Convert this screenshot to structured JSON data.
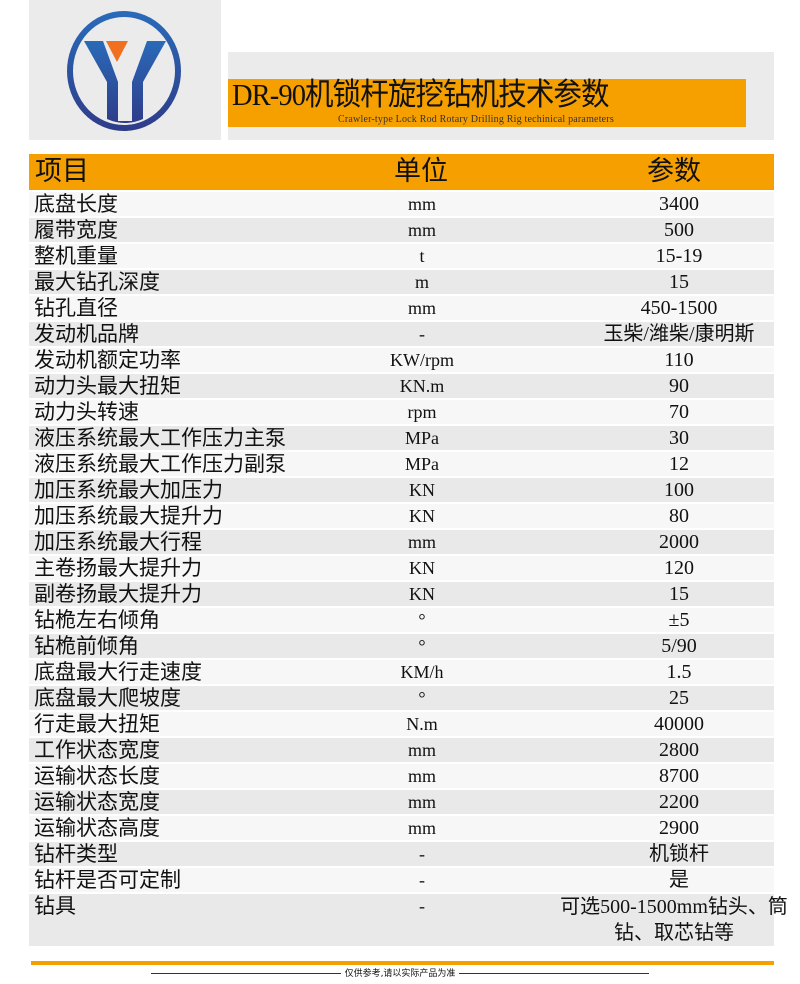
{
  "title": "DR-90机锁杆旋挖钻机技术参数",
  "subtitle": "Crawler-type Lock Rod Rotary Drilling Rig techinical parameters",
  "colors": {
    "accent": "#f5a000",
    "logo_blue": "#2a5aa8",
    "logo_orange": "#f07020"
  },
  "header": {
    "item": "项目",
    "unit": "单位",
    "value": "参数"
  },
  "rows": [
    {
      "item": "底盘长度",
      "unit": "mm",
      "value": "3400"
    },
    {
      "item": "履带宽度",
      "unit": "mm",
      "value": "500"
    },
    {
      "item": "整机重量",
      "unit": "t",
      "value": "15-19"
    },
    {
      "item": "最大钻孔深度",
      "unit": "m",
      "value": "15"
    },
    {
      "item": "钻孔直径",
      "unit": "mm",
      "value": "450-1500"
    },
    {
      "item": "发动机品牌",
      "unit": "-",
      "value": "玉柴/潍柴/康明斯"
    },
    {
      "item": "发动机额定功率",
      "unit": "KW/rpm",
      "value": "110"
    },
    {
      "item": "动力头最大扭矩",
      "unit": "KN.m",
      "value": "90"
    },
    {
      "item": "动力头转速",
      "unit": "rpm",
      "value": "70"
    },
    {
      "item": "液压系统最大工作压力主泵",
      "unit": "MPa",
      "value": "30"
    },
    {
      "item": "液压系统最大工作压力副泵",
      "unit": "MPa",
      "value": "12"
    },
    {
      "item": "加压系统最大加压力",
      "unit": "KN",
      "value": "100"
    },
    {
      "item": "加压系统最大提升力",
      "unit": "KN",
      "value": "80"
    },
    {
      "item": "加压系统最大行程",
      "unit": "mm",
      "value": "2000"
    },
    {
      "item": "主卷扬最大提升力",
      "unit": "KN",
      "value": "120"
    },
    {
      "item": "副卷扬最大提升力",
      "unit": "KN",
      "value": "15"
    },
    {
      "item": "钻桅左右倾角",
      "unit": "°",
      "value": "±5"
    },
    {
      "item": "钻桅前倾角",
      "unit": "°",
      "value": "5/90"
    },
    {
      "item": "底盘最大行走速度",
      "unit": "KM/h",
      "value": "1.5"
    },
    {
      "item": "底盘最大爬坡度",
      "unit": "°",
      "value": "25"
    },
    {
      "item": "行走最大扭矩",
      "unit": "N.m",
      "value": "40000"
    },
    {
      "item": "工作状态宽度",
      "unit": "mm",
      "value": "2800"
    },
    {
      "item": "运输状态长度",
      "unit": "mm",
      "value": "8700"
    },
    {
      "item": "运输状态宽度",
      "unit": "mm",
      "value": "2200"
    },
    {
      "item": "运输状态高度",
      "unit": "mm",
      "value": "2900"
    },
    {
      "item": "钻杆类型",
      "unit": "-",
      "value": "机锁杆"
    },
    {
      "item": "钻杆是否可定制",
      "unit": "-",
      "value": "是"
    },
    {
      "item": "钻具",
      "unit": "-",
      "value": "可选500-1500mm钻头、筒钻、取芯钻等"
    }
  ],
  "footer_note": "仅供参考,请以实际产品为准"
}
